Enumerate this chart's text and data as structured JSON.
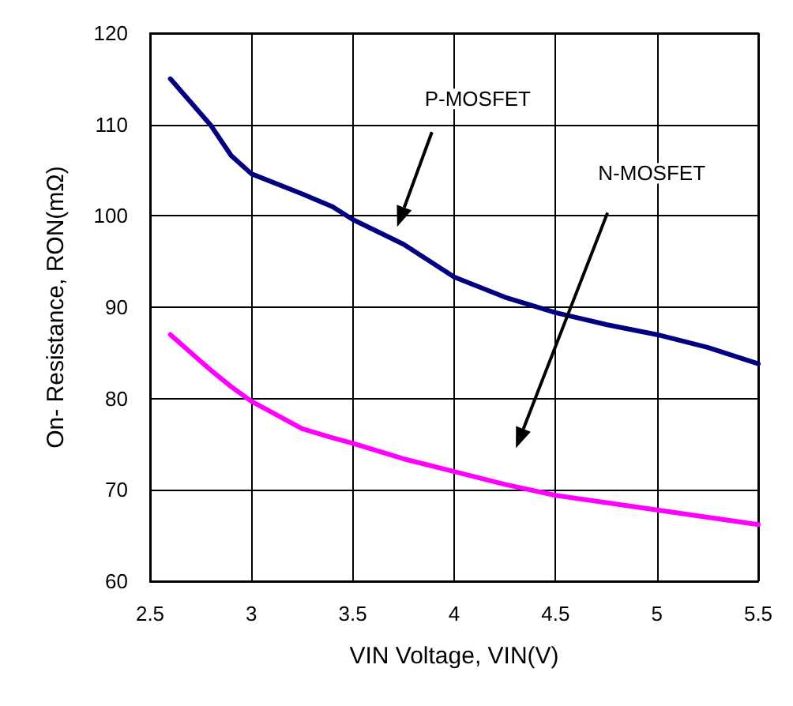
{
  "chart_data": {
    "type": "line",
    "xlabel": "VIN Voltage, VIN(V)",
    "ylabel": "On- Resistance, RON(mΩ)",
    "x": [
      2.6,
      2.8,
      2.9,
      3.0,
      3.25,
      3.4,
      3.5,
      3.75,
      4.0,
      4.25,
      4.5,
      4.75,
      5.0,
      5.25,
      5.5
    ],
    "series": [
      {
        "color": "#000080",
        "values": [
          115,
          109.9,
          106.6,
          104.6,
          102.4,
          101,
          99.6,
          96.9,
          93.3,
          91.1,
          89.4,
          88.1,
          87,
          85.6,
          83.8
        ]
      },
      {
        "color": "#ff00ff",
        "values": [
          87,
          83.1,
          81.3,
          79.7,
          76.7,
          75.7,
          75.1,
          73.4,
          72,
          70.6,
          69.4,
          68.6,
          67.8,
          67,
          66.2
        ]
      }
    ],
    "xlim": [
      2.5,
      5.5
    ],
    "xticks": [
      2.5,
      3,
      3.5,
      4,
      4.5,
      5,
      5.5
    ],
    "ylim": [
      60,
      120
    ],
    "yticks": [
      60,
      70,
      80,
      90,
      100,
      110,
      120
    ],
    "annotations": [
      "P-MOSFET",
      "N-MOSFET"
    ],
    "grid": true,
    "marker": "none",
    "line_style": "solid"
  }
}
